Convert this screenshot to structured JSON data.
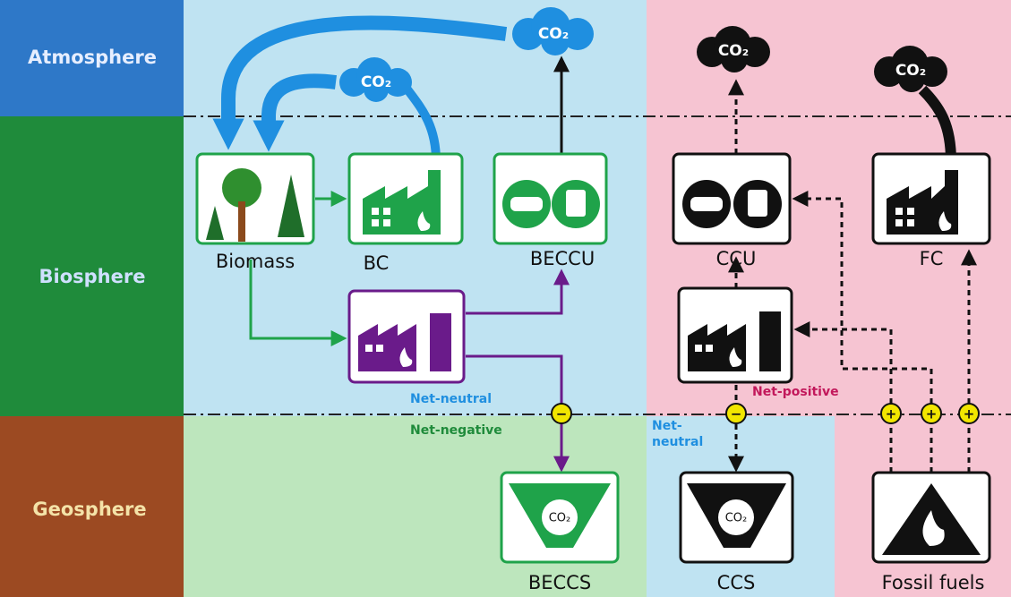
{
  "rows": [
    "Atmosphere",
    "Biosphere",
    "Geosphere"
  ],
  "nodes": {
    "biomass": "Biomass",
    "bc": "BC",
    "beccu": "BECCU",
    "ccu": "CCU",
    "fc": "FC",
    "beccs": "BECCS",
    "ccs": "CCS",
    "fossil": "Fossil fuels"
  },
  "co2": [
    "CO₂",
    "CO₂",
    "CO₂",
    "CO₂",
    "CO₂",
    "CO₂"
  ],
  "annotations": {
    "net_neutral": "Net-neutral",
    "net_negative": "Net-negative",
    "net_positive": "Net-positive",
    "net_neutral_2_line1": "Net-",
    "net_neutral_2_line2": "neutral"
  },
  "signs": [
    "−",
    "−",
    "+",
    "+",
    "+"
  ]
}
